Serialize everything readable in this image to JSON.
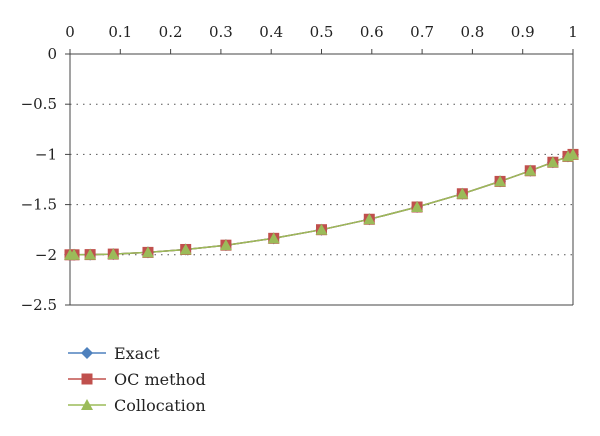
{
  "chart_data": {
    "type": "line",
    "title": "",
    "xlabel": "",
    "ylabel": "",
    "xlim": [
      0,
      1
    ],
    "ylim": [
      -2.5,
      0
    ],
    "x_ticks": [
      0,
      0.1,
      0.2,
      0.3,
      0.4,
      0.5,
      0.6,
      0.7,
      0.8,
      0.9,
      1
    ],
    "x_tick_labels": [
      "0",
      "0.1",
      "0.2",
      "0.3",
      "0.4",
      "0.5",
      "0.6",
      "0.7",
      "0.8",
      "0.9",
      "1"
    ],
    "y_ticks": [
      0,
      -0.5,
      -1,
      -1.5,
      -2,
      -2.5
    ],
    "y_tick_labels": [
      "0",
      "−0.5",
      "−1",
      "−1.5",
      "−2",
      "−2.5"
    ],
    "x_axis_position": "top",
    "grid": "horizontal-dotted",
    "legend_position": "bottom-left",
    "x": [
      0,
      0.008,
      0.04,
      0.086,
      0.155,
      0.23,
      0.31,
      0.405,
      0.5,
      0.595,
      0.69,
      0.78,
      0.855,
      0.915,
      0.96,
      0.99,
      1
    ],
    "series": [
      {
        "name": "Exact",
        "color": "#4F81BD",
        "marker": "diamond",
        "values": [
          -2,
          -2,
          -1.998,
          -1.993,
          -1.976,
          -1.947,
          -1.904,
          -1.836,
          -1.75,
          -1.646,
          -1.524,
          -1.392,
          -1.269,
          -1.163,
          -1.078,
          -1.02,
          -1
        ]
      },
      {
        "name": "OC method",
        "color": "#C0504D",
        "marker": "square",
        "values": [
          -2,
          -2,
          -1.998,
          -1.993,
          -1.976,
          -1.947,
          -1.904,
          -1.836,
          -1.75,
          -1.646,
          -1.524,
          -1.392,
          -1.269,
          -1.163,
          -1.078,
          -1.02,
          -1
        ]
      },
      {
        "name": "Collocation",
        "color": "#9BBB59",
        "marker": "triangle",
        "values": [
          -2,
          -2,
          -1.998,
          -1.993,
          -1.976,
          -1.947,
          -1.904,
          -1.836,
          -1.75,
          -1.646,
          -1.524,
          -1.392,
          -1.269,
          -1.163,
          -1.078,
          -1.02,
          -1
        ]
      }
    ]
  }
}
